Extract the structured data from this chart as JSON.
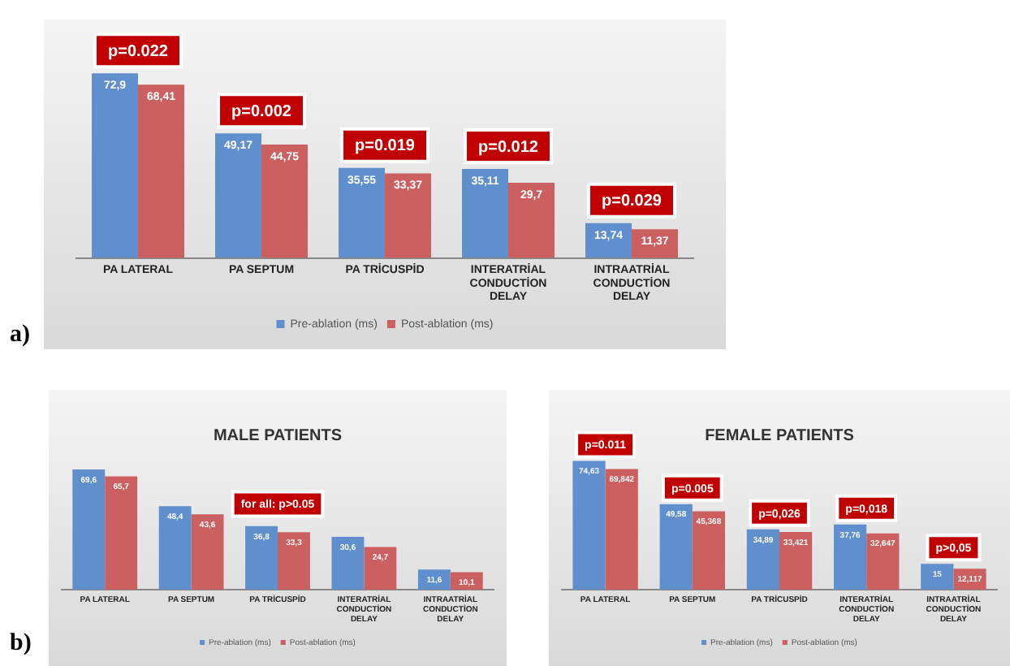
{
  "chart_data": [
    {
      "type": "bar",
      "categories": [
        "PA LATERAL",
        "PA SEPTUM",
        "PA TRİCUSPİD",
        "INTERATRİAL CONDUCTİON DELAY",
        "INTRAATRİAL CONDUCTİON DELAY"
      ],
      "series": [
        {
          "name": "Pre-ablation (ms)",
          "color": "#5f8fcc",
          "values": [
            72.9,
            49.17,
            35.55,
            35.11,
            13.74
          ],
          "value_labels": [
            "72,9",
            "49,17",
            "35,55",
            "35,11",
            "13,74"
          ]
        },
        {
          "name": "Post-ablation (ms)",
          "color": "#cc5f5f",
          "values": [
            68.41,
            44.75,
            33.37,
            29.7,
            11.37
          ],
          "value_labels": [
            "68,41",
            "44,75",
            "33,37",
            "29,7",
            "11,37"
          ]
        }
      ],
      "tick_labels": "x",
      "legend": "bottom",
      "annotations": [
        "a)",
        {
          "text": "p=0.022",
          "x": "PA LATERAL",
          "y": 72.9
        },
        {
          "text": "p=0.002",
          "x": "PA SEPTUM",
          "y": 49.17
        },
        {
          "text": "p=0.019",
          "x": "PA TRİCUSPİD",
          "y": 35.55
        },
        {
          "text": "p=0.012",
          "x": "INTERATRİAL CONDUCTİON DELAY",
          "y": 35.11
        },
        {
          "text": "p=0.029",
          "x": "INTRAATRİAL CONDUCTİON DELAY",
          "y": 13.74
        }
      ]
    },
    {
      "type": "bar",
      "title": "MALE PATIENTS",
      "categories": [
        "PA LATERAL",
        "PA SEPTUM",
        "PA TRİCUSPİD",
        "INTERATRİAL CONDUCTİON DELAY",
        "INTRAATRİAL CONDUCTİON DELAY"
      ],
      "series": [
        {
          "name": "Pre-ablation (ms)",
          "color": "#5f8fcc",
          "values": [
            69.6,
            48.4,
            36.8,
            30.6,
            11.6
          ],
          "value_labels": [
            "69,6",
            "48,4",
            "36,8",
            "30,6",
            "11,6"
          ]
        },
        {
          "name": "Post-ablation (ms)",
          "color": "#cc5f5f",
          "values": [
            65.7,
            43.6,
            33.3,
            24.7,
            10.1
          ],
          "value_labels": [
            "65,7",
            "43,6",
            "33,3",
            "24,7",
            "10,1"
          ]
        }
      ],
      "tick_labels": "x",
      "legend": "bottom",
      "annotations": [
        "b)",
        "for all: p>0.05"
      ]
    },
    {
      "type": "bar",
      "title": "FEMALE PATIENTS",
      "categories": [
        "PA LATERAL",
        "PA SEPTUM",
        "PA TRİCUSPİD",
        "INTERATRİAL CONDUCTİON DELAY",
        "INTRAATRİAL CONDUCTİON DELAY"
      ],
      "series": [
        {
          "name": "Pre-ablation (ms)",
          "color": "#5f8fcc",
          "values": [
            74.63,
            49.58,
            34.89,
            37.76,
            15
          ],
          "value_labels": [
            "74,63",
            "49,58",
            "34,89",
            "37,76",
            "15"
          ]
        },
        {
          "name": "Post-ablation (ms)",
          "color": "#cc5f5f",
          "values": [
            69.842,
            45.368,
            33.421,
            32.647,
            12.117
          ],
          "value_labels": [
            "69,842",
            "45,368",
            "33,421",
            "32,647",
            "12,117"
          ]
        }
      ],
      "tick_labels": "x",
      "legend": "bottom",
      "annotations": [
        {
          "text": "p=0.011",
          "x": "PA LATERAL",
          "y": 74.63
        },
        {
          "text": "p=0.005",
          "x": "PA SEPTUM",
          "y": 49.58
        },
        {
          "text": "p=0,026",
          "x": "PA TRİCUSPİD",
          "y": 34.89
        },
        {
          "text": "p=0,018",
          "x": "INTERATRİAL CONDUCTİON DELAY",
          "y": 37.76
        },
        {
          "text": "p>0,05",
          "x": "INTRAATRİAL CONDUCTİON DELAY",
          "y": 15
        }
      ]
    }
  ]
}
